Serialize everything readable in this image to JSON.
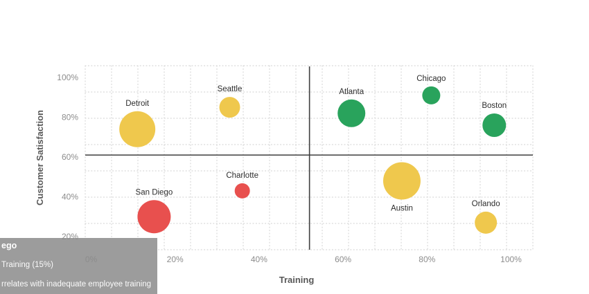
{
  "chart_data": {
    "type": "scatter",
    "subtype": "bubble",
    "title": "",
    "xlabel": "Training",
    "ylabel": "Customer Satisfaction",
    "grid": "dotted",
    "legend": "none",
    "x_axis_range_pct": [
      -1.5,
      105
    ],
    "y_axis_range_pct": [
      13,
      106
    ],
    "x_ticks": [
      {
        "pct": 0,
        "label": "0%"
      },
      {
        "pct": 20,
        "label": "20%"
      },
      {
        "pct": 40,
        "label": "40%"
      },
      {
        "pct": 60,
        "label": "60%"
      },
      {
        "pct": 80,
        "label": "80%"
      },
      {
        "pct": 100,
        "label": "100%"
      }
    ],
    "y_ticks": [
      {
        "pct": 100,
        "label": "100%"
      },
      {
        "pct": 80,
        "label": "80%"
      },
      {
        "pct": 60,
        "label": "60%"
      },
      {
        "pct": 40,
        "label": "40%"
      },
      {
        "pct": 20,
        "label": "20%"
      }
    ],
    "quadrants": {
      "x_line_pct": 52,
      "y_line_pct": 61
    },
    "points": [
      {
        "city": "Detroit",
        "training_pct": 11,
        "satisfaction_pct": 74,
        "color_key": "yellow",
        "radius_px": 26,
        "label_position": "above"
      },
      {
        "city": "Seattle",
        "training_pct": 33,
        "satisfaction_pct": 85,
        "color_key": "yellow",
        "radius_px": 15,
        "label_position": "above"
      },
      {
        "city": "Atlanta",
        "training_pct": 62,
        "satisfaction_pct": 82,
        "color_key": "green",
        "radius_px": 20,
        "label_position": "above"
      },
      {
        "city": "Chicago",
        "training_pct": 81,
        "satisfaction_pct": 91,
        "color_key": "green",
        "radius_px": 13,
        "label_position": "above"
      },
      {
        "city": "Boston",
        "training_pct": 96,
        "satisfaction_pct": 76,
        "color_key": "green",
        "radius_px": 17,
        "label_position": "above"
      },
      {
        "city": "Charlotte",
        "training_pct": 36,
        "satisfaction_pct": 43,
        "color_key": "red",
        "radius_px": 11,
        "label_position": "above"
      },
      {
        "city": "San Diego",
        "training_pct": 15,
        "satisfaction_pct": 30,
        "color_key": "red",
        "radius_px": 24,
        "label_position": "above"
      },
      {
        "city": "Austin",
        "training_pct": 74,
        "satisfaction_pct": 48,
        "color_key": "yellow",
        "radius_px": 27,
        "label_position": "below"
      },
      {
        "city": "Orlando",
        "training_pct": 94,
        "satisfaction_pct": 27,
        "color_key": "yellow",
        "radius_px": 16,
        "label_position": "above"
      }
    ],
    "colors": {
      "yellow": "#EFC84D",
      "green": "#29A35C",
      "red": "#E8504E"
    }
  },
  "tooltip": {
    "title_fragment": "ego",
    "metric_fragment": "Training (15%)",
    "description_fragment": "rrelates with inadequate employee training",
    "background": "#9C9C9C",
    "text_color": "#FFFFFF"
  }
}
